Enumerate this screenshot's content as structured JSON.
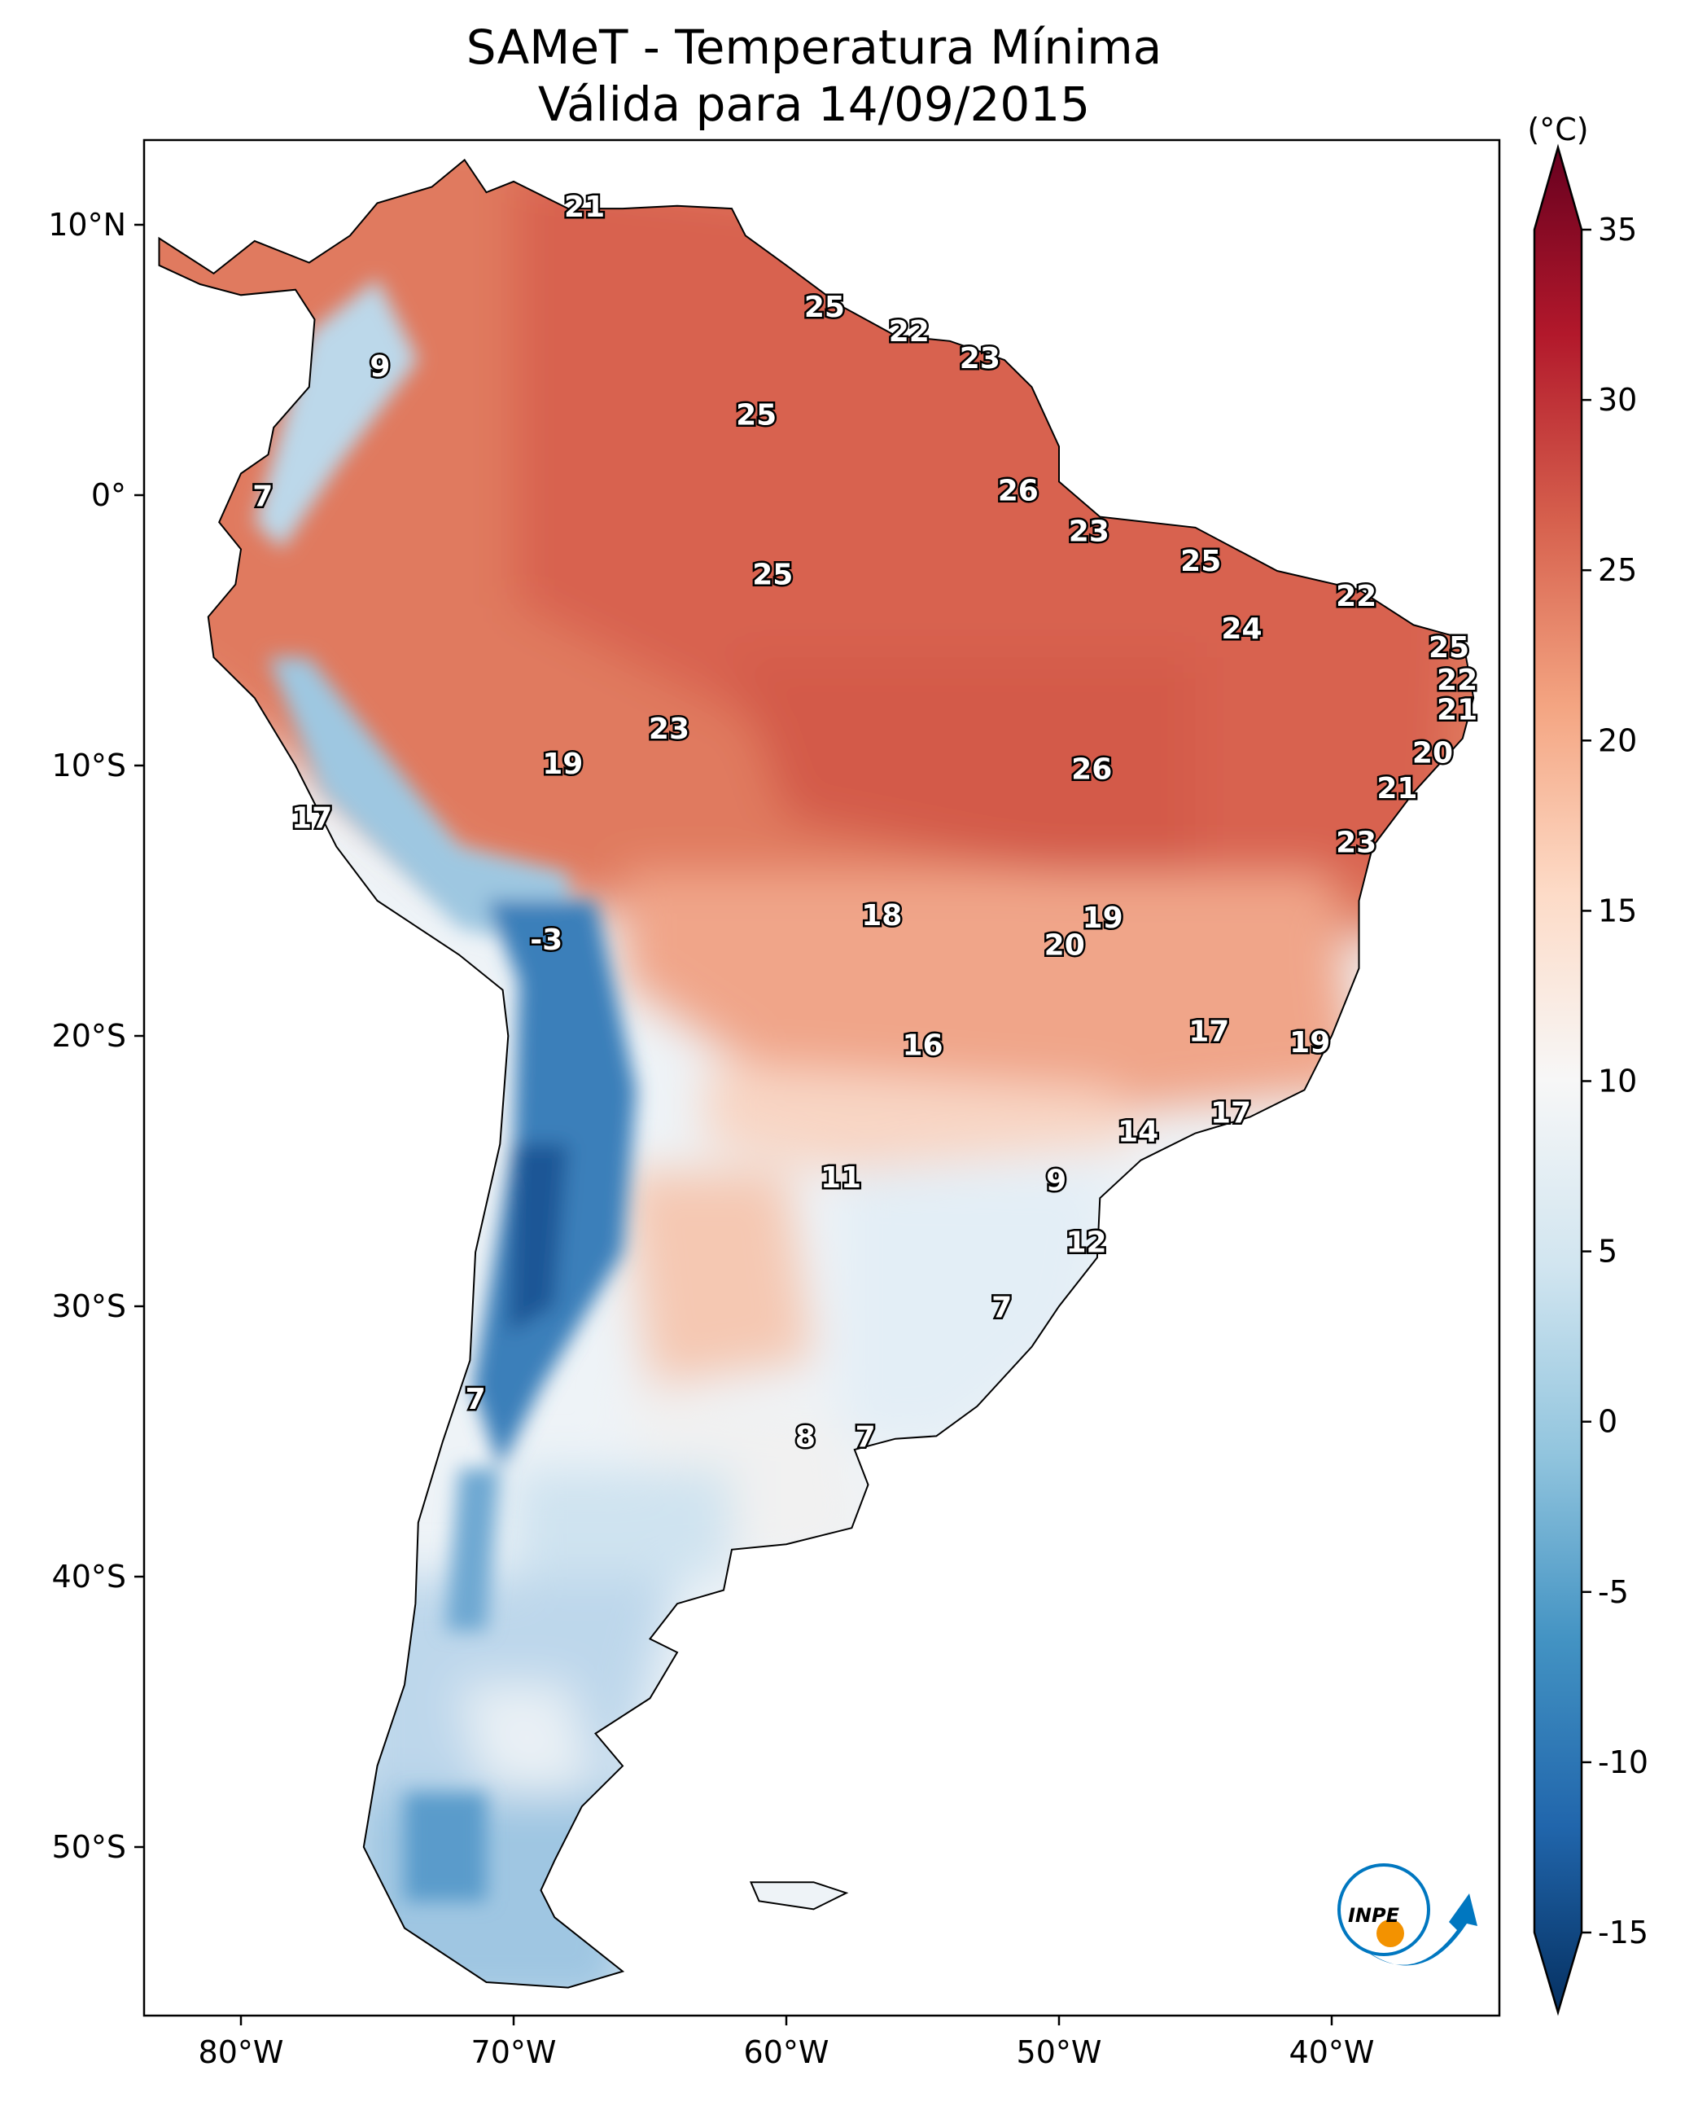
{
  "title": {
    "line1": "SAMeT - Temperatura Mínima",
    "line2": "Válida para 14/09/2015"
  },
  "colorbar": {
    "unit": "(°C)",
    "min": -15,
    "max": 35,
    "ticks": [
      "35",
      "30",
      "25",
      "20",
      "15",
      "10",
      "5",
      "0",
      "-5",
      "-10",
      "-15"
    ],
    "tick_values": [
      35,
      30,
      25,
      20,
      15,
      10,
      5,
      0,
      -5,
      -10,
      -15
    ],
    "colormap": "RdBu_r",
    "colors": [
      "#053061",
      "#2166ac",
      "#4393c3",
      "#92c5de",
      "#d1e5f0",
      "#f7f7f7",
      "#fddbc7",
      "#f4a582",
      "#d6604d",
      "#b2182b",
      "#67001f"
    ]
  },
  "axes": {
    "lon_ticks": [
      {
        "value": -80,
        "label": "80°W"
      },
      {
        "value": -70,
        "label": "70°W"
      },
      {
        "value": -60,
        "label": "60°W"
      },
      {
        "value": -50,
        "label": "50°W"
      },
      {
        "value": -40,
        "label": "40°W"
      }
    ],
    "lat_ticks": [
      {
        "value": 10,
        "label": "10°N"
      },
      {
        "value": 0,
        "label": "0°"
      },
      {
        "value": -10,
        "label": "10°S"
      },
      {
        "value": -20,
        "label": "20°S"
      },
      {
        "value": -30,
        "label": "30°S"
      },
      {
        "value": -40,
        "label": "40°S"
      },
      {
        "value": -50,
        "label": "50°S"
      }
    ],
    "lon_range": [
      -83,
      -33
    ],
    "lat_range": [
      13,
      -56
    ]
  },
  "labels": [
    {
      "text": "21",
      "lon": -67.4,
      "lat": 10.6
    },
    {
      "text": "9",
      "lon": -74.9,
      "lat": 4.7
    },
    {
      "text": "7",
      "lon": -79.2,
      "lat": -0.1
    },
    {
      "text": "25",
      "lon": -58.6,
      "lat": 6.9
    },
    {
      "text": "22",
      "lon": -55.5,
      "lat": 6.0
    },
    {
      "text": "23",
      "lon": -52.9,
      "lat": 5.0
    },
    {
      "text": "25",
      "lon": -61.1,
      "lat": 2.9
    },
    {
      "text": "26",
      "lon": -51.5,
      "lat": 0.1
    },
    {
      "text": "23",
      "lon": -48.9,
      "lat": -1.4
    },
    {
      "text": "25",
      "lon": -60.5,
      "lat": -3.0
    },
    {
      "text": "25",
      "lon": -44.8,
      "lat": -2.5
    },
    {
      "text": "22",
      "lon": -39.1,
      "lat": -3.8
    },
    {
      "text": "24",
      "lon": -43.3,
      "lat": -5.0
    },
    {
      "text": "25",
      "lon": -35.7,
      "lat": -5.7
    },
    {
      "text": "22",
      "lon": -35.4,
      "lat": -6.9
    },
    {
      "text": "21",
      "lon": -35.4,
      "lat": -8.0
    },
    {
      "text": "20",
      "lon": -36.3,
      "lat": -9.6
    },
    {
      "text": "21",
      "lon": -37.6,
      "lat": -10.9
    },
    {
      "text": "23",
      "lon": -39.1,
      "lat": -12.9
    },
    {
      "text": "23",
      "lon": -64.3,
      "lat": -8.7
    },
    {
      "text": "19",
      "lon": -68.2,
      "lat": -10.0
    },
    {
      "text": "17",
      "lon": -77.4,
      "lat": -12.0
    },
    {
      "text": "26",
      "lon": -48.8,
      "lat": -10.2
    },
    {
      "text": "18",
      "lon": -56.5,
      "lat": -15.6
    },
    {
      "text": "19",
      "lon": -48.4,
      "lat": -15.7
    },
    {
      "text": "20",
      "lon": -49.8,
      "lat": -16.7
    },
    {
      "text": "-3",
      "lon": -68.8,
      "lat": -16.5
    },
    {
      "text": "16",
      "lon": -55.0,
      "lat": -20.4
    },
    {
      "text": "17",
      "lon": -44.5,
      "lat": -19.9
    },
    {
      "text": "19",
      "lon": -40.8,
      "lat": -20.3
    },
    {
      "text": "14",
      "lon": -47.1,
      "lat": -23.6
    },
    {
      "text": "17",
      "lon": -43.7,
      "lat": -22.9
    },
    {
      "text": "11",
      "lon": -58.0,
      "lat": -25.3
    },
    {
      "text": "9",
      "lon": -50.1,
      "lat": -25.4
    },
    {
      "text": "12",
      "lon": -49.0,
      "lat": -27.7
    },
    {
      "text": "7",
      "lon": -52.1,
      "lat": -30.1
    },
    {
      "text": "7",
      "lon": -71.4,
      "lat": -33.5
    },
    {
      "text": "8",
      "lon": -59.3,
      "lat": -34.9
    },
    {
      "text": "7",
      "lon": -57.1,
      "lat": -34.9
    }
  ],
  "logo": {
    "text": "INPE",
    "blue": "#0077c0",
    "orange": "#f39200"
  }
}
